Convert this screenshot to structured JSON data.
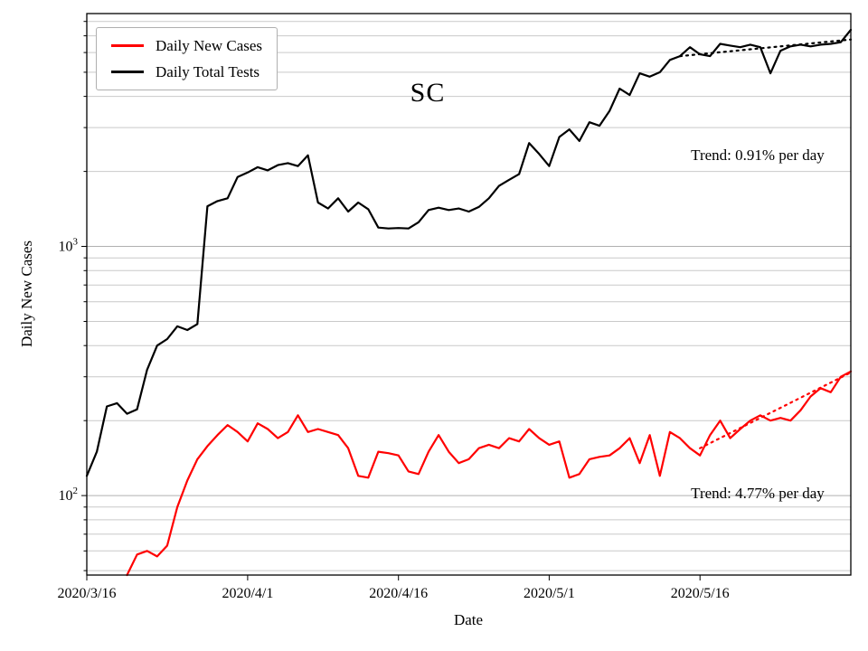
{
  "title": "SC",
  "xlabel": "Date",
  "ylabel": "Daily New Cases",
  "legend": [
    {
      "label": "Daily New Cases",
      "color": "#ff0000"
    },
    {
      "label": "Daily Total Tests",
      "color": "#000000"
    }
  ],
  "annotations": [
    {
      "text": "Trend: 0.91% per day",
      "series": "Daily Total Tests"
    },
    {
      "text": "Trend: 4.77% per day",
      "series": "Daily New Cases"
    }
  ],
  "chart_data": {
    "type": "line",
    "y_scale": "log",
    "xlim": [
      0,
      76
    ],
    "ylim": [
      48,
      8600
    ],
    "x_start_date": "2020/3/16",
    "x_ticks": [
      {
        "day": 0,
        "label": "2020/3/16"
      },
      {
        "day": 16,
        "label": "2020/4/1"
      },
      {
        "day": 31,
        "label": "2020/4/16"
      },
      {
        "day": 46,
        "label": "2020/5/1"
      },
      {
        "day": 61,
        "label": "2020/5/16"
      }
    ],
    "y_ticks": [
      {
        "value": 100,
        "exponent": "2"
      },
      {
        "value": 1000,
        "exponent": "3"
      }
    ],
    "series": [
      {
        "name": "Daily Total Tests",
        "color": "#000000",
        "values": [
          120,
          150,
          228,
          235,
          213,
          222,
          320,
          400,
          425,
          478,
          462,
          488,
          1450,
          1520,
          1560,
          1900,
          1980,
          2080,
          2020,
          2120,
          2160,
          2100,
          2320,
          1500,
          1420,
          1560,
          1380,
          1500,
          1410,
          1190,
          1180,
          1185,
          1180,
          1250,
          1400,
          1430,
          1400,
          1420,
          1380,
          1440,
          1560,
          1750,
          1850,
          1950,
          2600,
          2350,
          2100,
          2750,
          2950,
          2650,
          3150,
          3050,
          3500,
          4300,
          4050,
          4950,
          4800,
          5000,
          5600,
          5800,
          6300,
          5900,
          5800,
          6500,
          6400,
          6300,
          6450,
          6300,
          4950,
          6100,
          6350,
          6450,
          6350,
          6450,
          6500,
          6600,
          7400
        ]
      },
      {
        "name": "Daily New Cases",
        "color": "#ff0000",
        "values": [
          null,
          null,
          null,
          null,
          48,
          58,
          60,
          57,
          63,
          90,
          115,
          140,
          158,
          175,
          192,
          180,
          165,
          195,
          185,
          170,
          180,
          210,
          180,
          185,
          180,
          175,
          155,
          120,
          118,
          150,
          148,
          145,
          125,
          122,
          150,
          175,
          150,
          135,
          140,
          155,
          160,
          155,
          170,
          165,
          185,
          170,
          160,
          165,
          118,
          122,
          140,
          143,
          145,
          155,
          170,
          135,
          175,
          120,
          180,
          170,
          155,
          145,
          175,
          200,
          170,
          185,
          200,
          210,
          200,
          205,
          200,
          220,
          250,
          270,
          260,
          300,
          315
        ]
      }
    ],
    "trends": [
      {
        "series": "Daily Total Tests",
        "rate_pct_per_day": 0.91,
        "start_day": 59,
        "end_day": 76,
        "start_value": 5800,
        "color": "#000000",
        "label": "Trend: 0.91% per day"
      },
      {
        "series": "Daily New Cases",
        "rate_pct_per_day": 4.77,
        "start_day": 61,
        "end_day": 76,
        "start_value": 155,
        "color": "#ff0000",
        "label": "Trend: 4.77% per day"
      }
    ]
  }
}
